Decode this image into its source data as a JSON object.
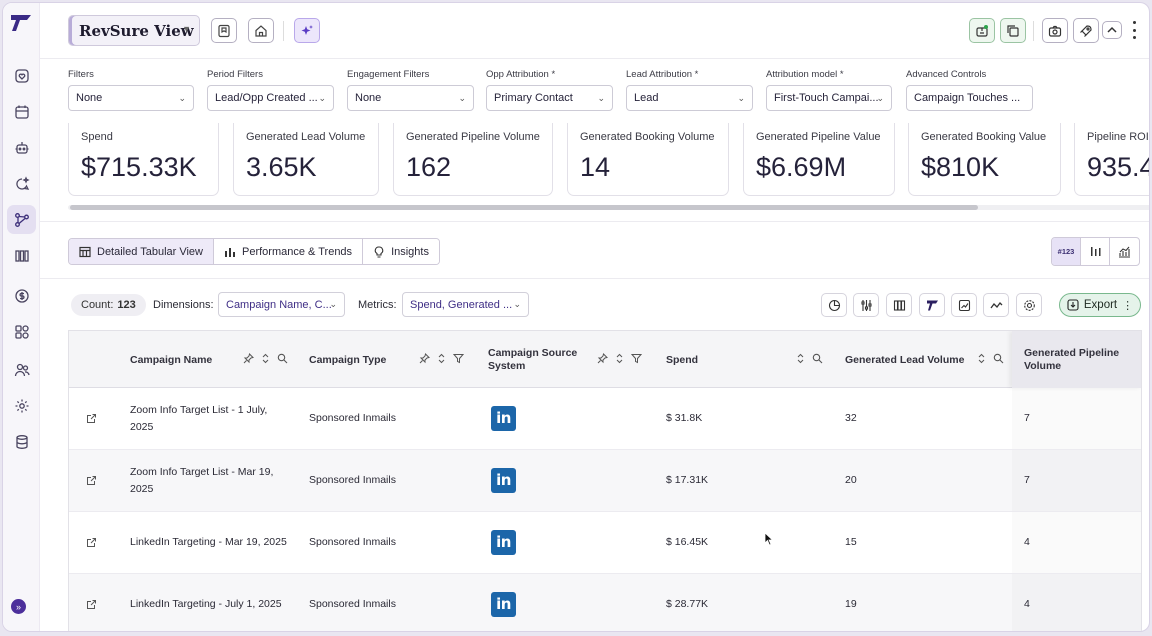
{
  "app": {
    "view_title": "RevSure View",
    "brand_color": "#4c2f9b"
  },
  "sidebar": {
    "items": [
      {
        "icon": "home-heart-icon"
      },
      {
        "icon": "calendar-icon"
      },
      {
        "icon": "robot-icon"
      },
      {
        "icon": "chat-sparkle-icon"
      },
      {
        "icon": "attribution-flow-icon",
        "active": true
      },
      {
        "icon": "columns-icon"
      },
      {
        "icon": "dollar-icon"
      },
      {
        "icon": "users-settings-icon"
      },
      {
        "icon": "people-icon"
      },
      {
        "icon": "gear-puzzle-icon"
      },
      {
        "icon": "database-icon"
      }
    ],
    "expand_label": "»"
  },
  "filters": [
    {
      "label": "Filters",
      "value": "None"
    },
    {
      "label": "Period Filters",
      "value": "Lead/Opp Created ..."
    },
    {
      "label": "Engagement Filters",
      "value": "None"
    },
    {
      "label": "Opp Attribution *",
      "value": "Primary Contact"
    },
    {
      "label": "Lead Attribution *",
      "value": "Lead"
    },
    {
      "label": "Attribution model *",
      "value": "First-Touch Campai..."
    },
    {
      "label": "Advanced Controls",
      "value": "Campaign Touches ..."
    }
  ],
  "kpis": [
    {
      "label": "Spend",
      "value": "$715.33K"
    },
    {
      "label": "Generated Lead Volume",
      "value": "3.65K"
    },
    {
      "label": "Generated Pipeline Volume",
      "value": "162"
    },
    {
      "label": "Generated Booking Volume",
      "value": "14"
    },
    {
      "label": "Generated Pipeline Value",
      "value": "$6.69M"
    },
    {
      "label": "Generated Booking Value",
      "value": "$810K"
    },
    {
      "label": "Pipeline ROI",
      "value": "935.4"
    }
  ],
  "tabs": [
    {
      "label": "Detailed Tabular View",
      "active": true
    },
    {
      "label": "Performance & Trends"
    },
    {
      "label": "Insights"
    }
  ],
  "view_toggle": {
    "numeric_label": "#123"
  },
  "controls": {
    "count_label": "Count:",
    "count_value": "123",
    "dimensions_label": "Dimensions:",
    "dimensions_value": "Campaign Name, C...",
    "metrics_label": "Metrics:",
    "metrics_value": "Spend, Generated ...",
    "export_label": "Export"
  },
  "table": {
    "columns": [
      "Campaign Name",
      "Campaign Type",
      "Campaign Source System",
      "Spend",
      "Generated Lead Volume",
      "Generated Pipeline Volume"
    ],
    "source_badge": "in",
    "rows": [
      {
        "name": "Zoom Info Target List - 1 July, 2025",
        "type": "Sponsored Inmails",
        "source": "LinkedIn",
        "spend": "$ 31.8K",
        "leads": "32",
        "pipeline": "7"
      },
      {
        "name": "Zoom Info Target List - Mar 19, 2025",
        "type": "Sponsored Inmails",
        "source": "LinkedIn",
        "spend": "$ 17.31K",
        "leads": "20",
        "pipeline": "7"
      },
      {
        "name": "LinkedIn Targeting - Mar 19, 2025",
        "type": "Sponsored Inmails",
        "source": "LinkedIn",
        "spend": "$ 16.45K",
        "leads": "15",
        "pipeline": "4"
      },
      {
        "name": "LinkedIn Targeting - July 1, 2025",
        "type": "Sponsored Inmails",
        "source": "LinkedIn",
        "spend": "$ 28.77K",
        "leads": "19",
        "pipeline": "4"
      }
    ]
  }
}
